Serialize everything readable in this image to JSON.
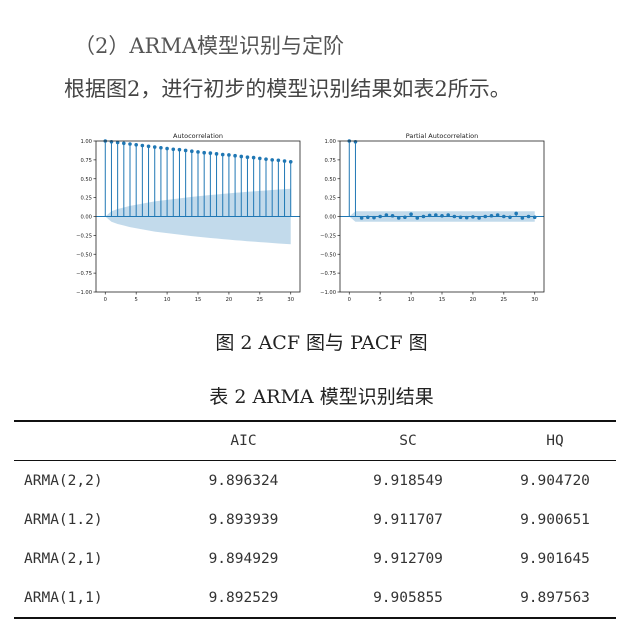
{
  "heading": "（2）ARMA模型识别与定阶",
  "paragraph": "根据图2，进行初步的模型识别结果如表2所示。",
  "figure_caption": "图 2  ACF 图与 PACF 图",
  "table_caption": "表 2  ARMA 模型识别结果",
  "table": {
    "headers": [
      "",
      "AIC",
      "SC",
      "HQ"
    ],
    "rows": [
      [
        "ARMA(2,2)",
        "9.896324",
        "9.918549",
        "9.904720"
      ],
      [
        "ARMA(1.2)",
        "9.893939",
        "9.911707",
        "9.900651"
      ],
      [
        "ARMA(2,1)",
        "9.894929",
        "9.912709",
        "9.901645"
      ],
      [
        "ARMA(1,1)",
        "9.892529",
        "9.905855",
        "9.897563"
      ]
    ]
  },
  "chart_data": [
    {
      "type": "stem",
      "title": "Autocorrelation",
      "x": [
        0,
        1,
        2,
        3,
        4,
        5,
        6,
        7,
        8,
        9,
        10,
        11,
        12,
        13,
        14,
        15,
        16,
        17,
        18,
        19,
        20,
        21,
        22,
        23,
        24,
        25,
        26,
        27,
        28,
        29,
        30
      ],
      "values": [
        1.0,
        0.99,
        0.98,
        0.97,
        0.96,
        0.95,
        0.94,
        0.93,
        0.92,
        0.91,
        0.9,
        0.89,
        0.885,
        0.875,
        0.865,
        0.855,
        0.845,
        0.84,
        0.83,
        0.82,
        0.815,
        0.805,
        0.795,
        0.785,
        0.78,
        0.77,
        0.76,
        0.75,
        0.745,
        0.735,
        0.725
      ],
      "confidence_band": [
        0.0,
        0.07,
        0.1,
        0.12,
        0.14,
        0.155,
        0.17,
        0.185,
        0.2,
        0.21,
        0.22,
        0.23,
        0.24,
        0.25,
        0.26,
        0.268,
        0.276,
        0.284,
        0.292,
        0.3,
        0.307,
        0.314,
        0.32,
        0.327,
        0.333,
        0.339,
        0.345,
        0.351,
        0.357,
        0.362,
        0.368
      ],
      "xlim": [
        -1.5,
        31.5
      ],
      "ylim": [
        -1.0,
        1.0
      ],
      "xticks": [
        0,
        5,
        10,
        15,
        20,
        25,
        30
      ],
      "yticks": [
        -1.0,
        -0.75,
        -0.5,
        -0.25,
        0.0,
        0.25,
        0.5,
        0.75,
        1.0
      ],
      "ytick_labels": [
        "−1.00",
        "−0.75",
        "−0.50",
        "−0.25",
        "0.00",
        "0.25",
        "0.50",
        "0.75",
        "1.00"
      ],
      "color": "#1f77b4",
      "band_color": "#1f77b4"
    },
    {
      "type": "stem",
      "title": "Partial Autocorrelation",
      "x": [
        0,
        1,
        2,
        3,
        4,
        5,
        6,
        7,
        8,
        9,
        10,
        11,
        12,
        13,
        14,
        15,
        16,
        17,
        18,
        19,
        20,
        21,
        22,
        23,
        24,
        25,
        26,
        27,
        28,
        29,
        30
      ],
      "values": [
        1.0,
        0.99,
        -0.02,
        -0.01,
        -0.015,
        0.0,
        0.02,
        0.01,
        -0.02,
        -0.01,
        0.03,
        -0.02,
        0.0,
        0.015,
        0.02,
        0.01,
        0.02,
        0.0,
        -0.01,
        -0.015,
        -0.005,
        -0.02,
        0.0,
        0.01,
        0.02,
        0.0,
        -0.01,
        0.04,
        -0.02,
        0.0,
        -0.01
      ],
      "confidence_band": [
        0.0,
        0.07,
        0.07,
        0.07,
        0.07,
        0.07,
        0.07,
        0.07,
        0.07,
        0.07,
        0.07,
        0.07,
        0.07,
        0.07,
        0.07,
        0.07,
        0.07,
        0.07,
        0.07,
        0.07,
        0.07,
        0.07,
        0.07,
        0.07,
        0.07,
        0.07,
        0.07,
        0.07,
        0.07,
        0.07,
        0.07
      ],
      "xlim": [
        -1.5,
        31.5
      ],
      "ylim": [
        -1.0,
        1.0
      ],
      "xticks": [
        0,
        5,
        10,
        15,
        20,
        25,
        30
      ],
      "yticks": [
        -1.0,
        -0.75,
        -0.5,
        -0.25,
        0.0,
        0.25,
        0.5,
        0.75,
        1.0
      ],
      "ytick_labels": [
        "−1.00",
        "−0.75",
        "−0.50",
        "−0.25",
        "0.00",
        "0.25",
        "0.50",
        "0.75",
        "1.00"
      ],
      "color": "#1f77b4",
      "band_color": "#1f77b4"
    }
  ]
}
